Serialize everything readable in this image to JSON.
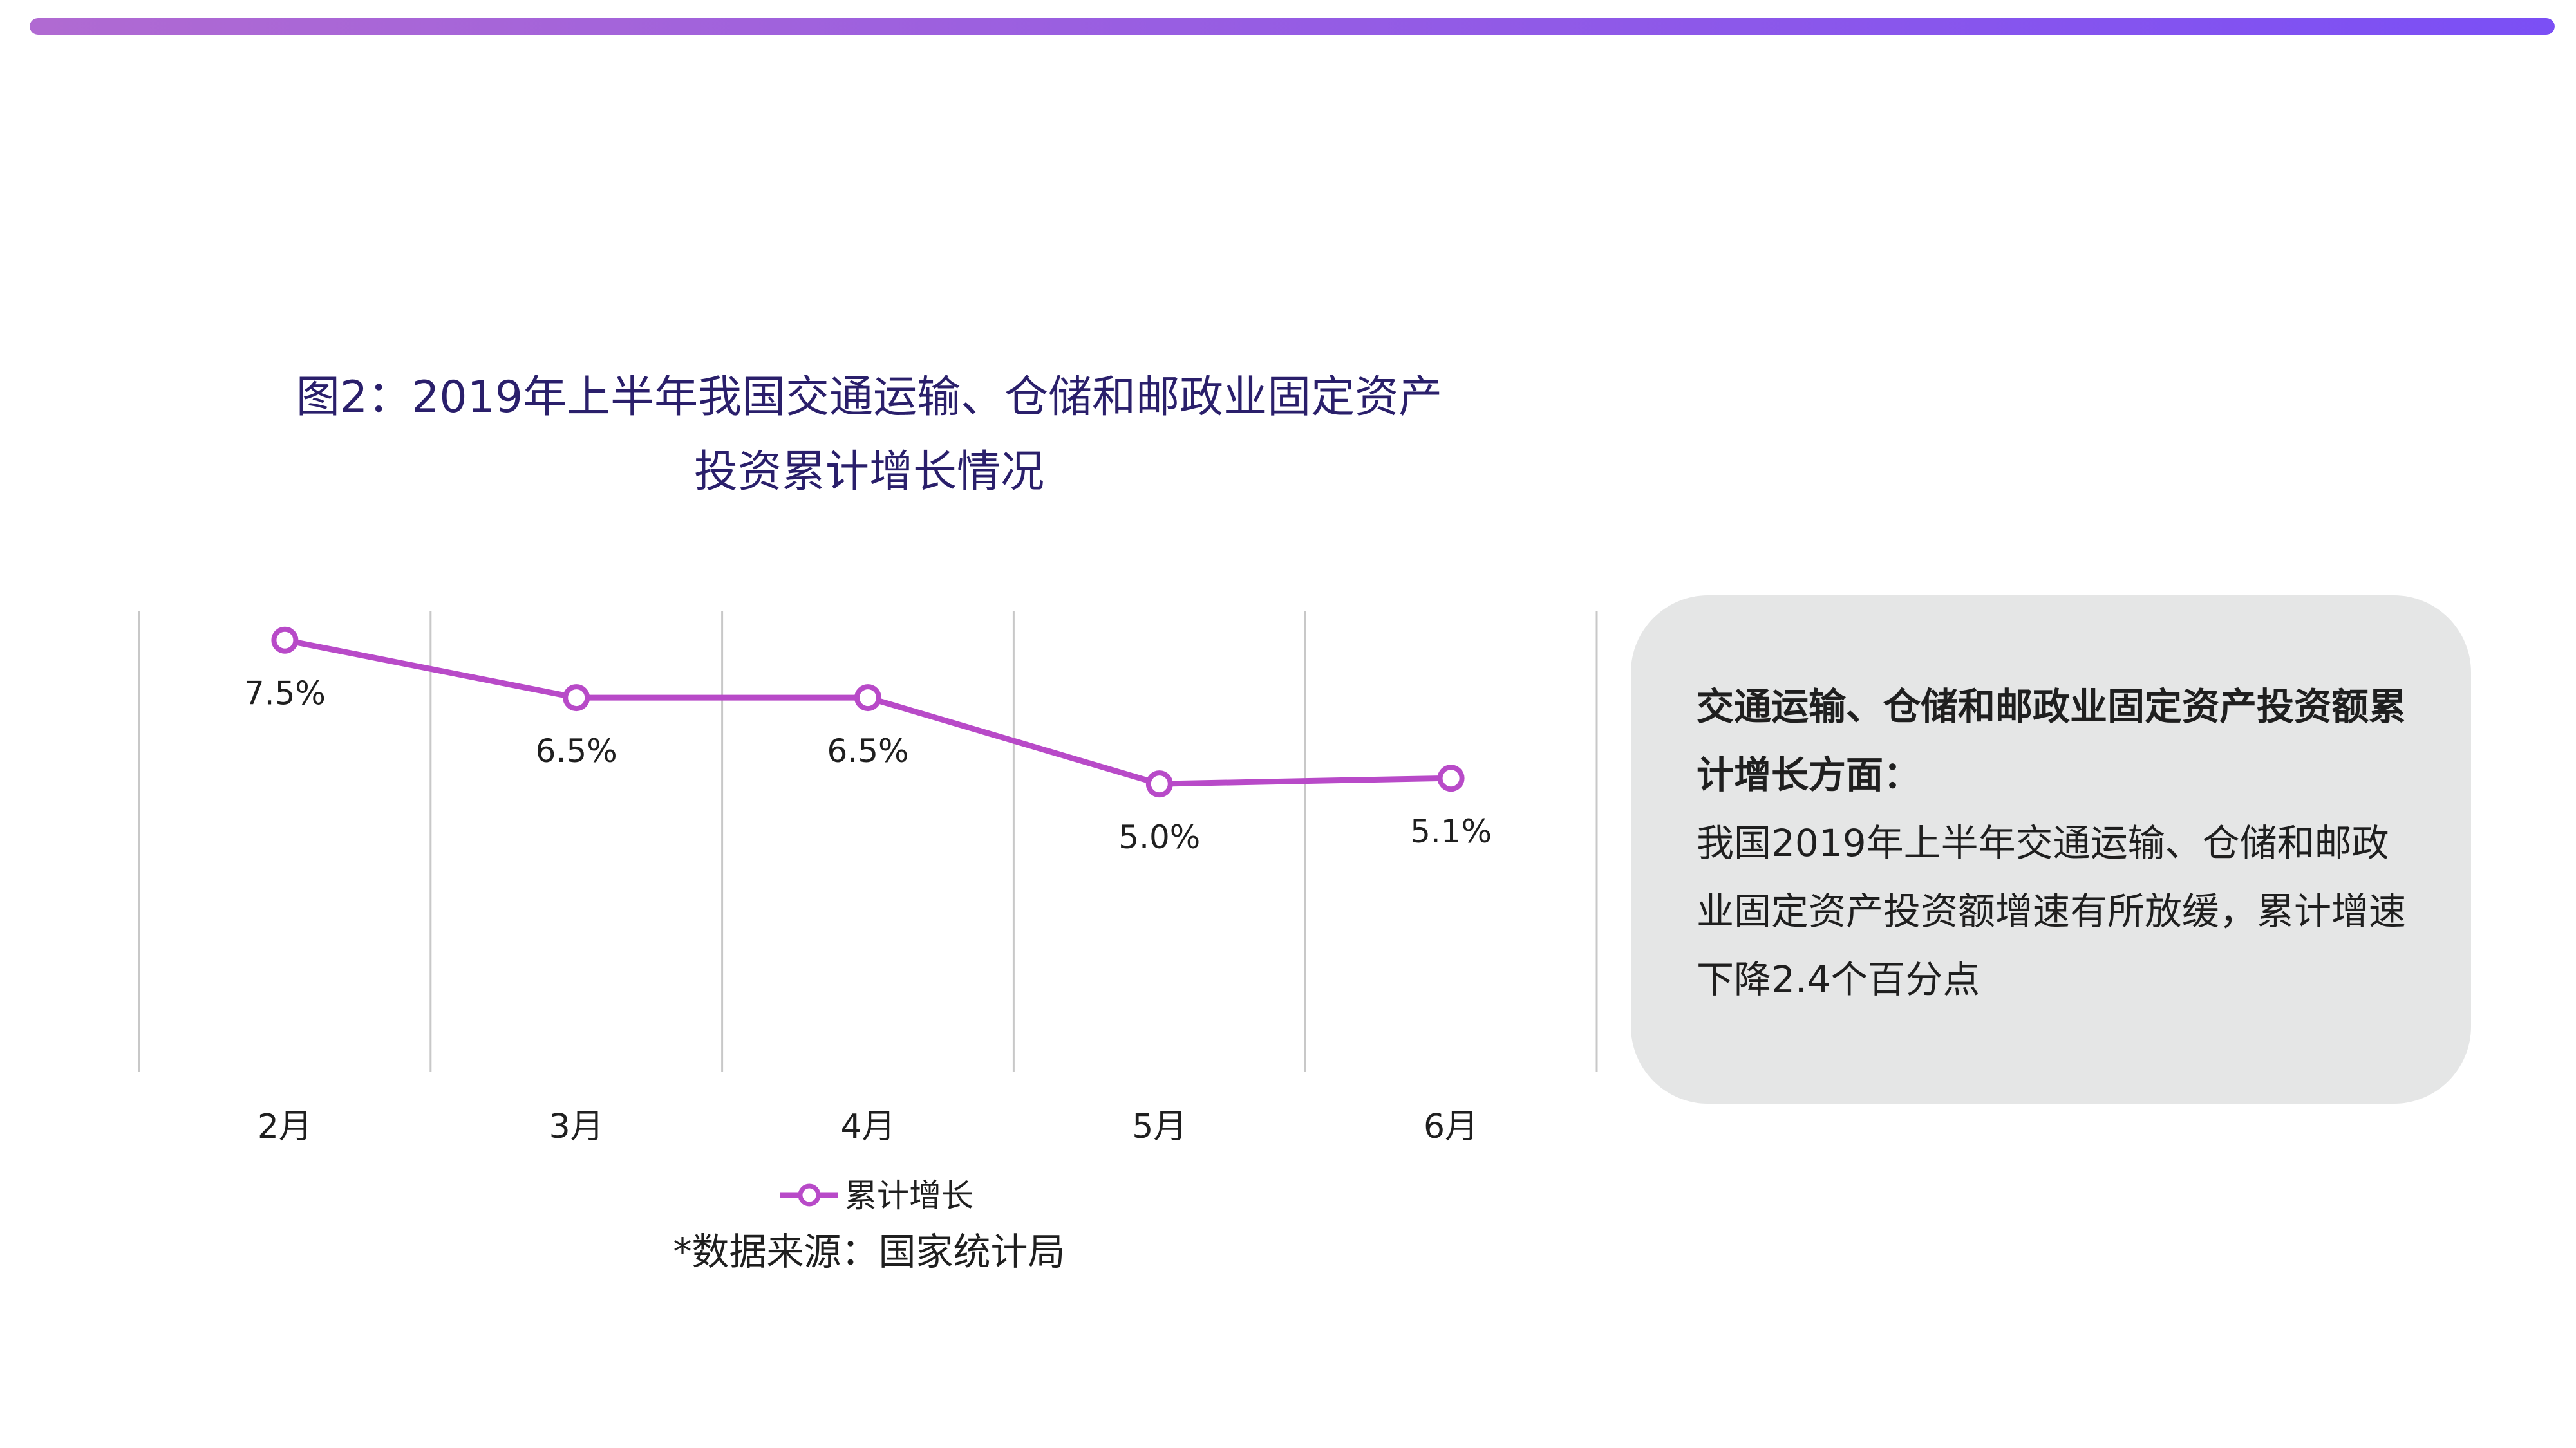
{
  "colors": {
    "gradient_start": "#b06ad2",
    "gradient_end": "#7b4ff5",
    "series_line": "#b84ac8",
    "grid": "#c8c8c8",
    "title_text": "#2a1f6b",
    "card_bg": "#e5e6e6"
  },
  "title": {
    "line1": "图2：2019年上半年我国交通运输、仓储和邮政业固定资产",
    "line2": "投资累计增长情况"
  },
  "chart_data": {
    "type": "line",
    "categories": [
      "2月",
      "3月",
      "4月",
      "5月",
      "6月"
    ],
    "series": [
      {
        "name": "累计增长",
        "values": [
          7.5,
          6.5,
          6.5,
          5.0,
          5.1
        ],
        "labels": [
          "7.5%",
          "6.5%",
          "6.5%",
          "5.0%",
          "5.1%"
        ]
      }
    ],
    "ylim": [
      0,
      8.0
    ],
    "grid": "vertical",
    "legend": "bottom"
  },
  "info_card": {
    "heading": "交通运输、仓储和邮政业固定资产投资额累计增长方面：",
    "body": "我国2019年上半年交通运输、仓储和邮政业固定资产投资额增速有所放缓，累计增速下降2.4个百分点"
  },
  "source_note": "*数据来源：国家统计局"
}
